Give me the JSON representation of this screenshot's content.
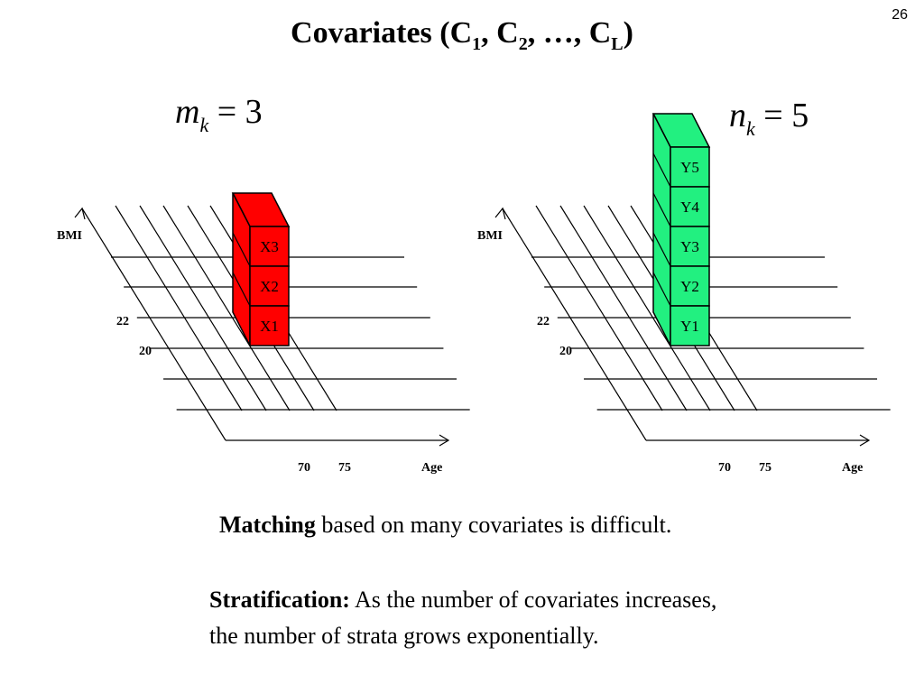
{
  "slide_number": "26",
  "title": {
    "text": "Covariates (C",
    "sub1": "1",
    "mid1": ", C",
    "sub2": "2",
    "mid2": ", …, C",
    "subL": "L",
    "end": ")"
  },
  "formula_left": {
    "var": "m",
    "sub": "k",
    "rest": " = 3"
  },
  "formula_right": {
    "var": "n",
    "sub": "k",
    "rest": " = 5"
  },
  "left_diagram": {
    "y_axis_label": "BMI",
    "x_axis_label": "Age",
    "y_ticks": [
      "22",
      "20"
    ],
    "x_ticks": [
      "70",
      "75"
    ],
    "cube_color": "#ff0000",
    "cubes": [
      "X3",
      "X2",
      "X1"
    ]
  },
  "right_diagram": {
    "y_axis_label": "BMI",
    "x_axis_label": "Age",
    "y_ticks": [
      "22",
      "20"
    ],
    "x_ticks": [
      "70",
      "75"
    ],
    "cube_color": "#22f080",
    "cubes": [
      "Y5",
      "Y4",
      "Y3",
      "Y2",
      "Y1"
    ]
  },
  "text": {
    "matching_bold": "Matching",
    "matching_rest": " based on many covariates is difficult.",
    "strat_bold": "Stratification:",
    "strat_line1": " As the number of covariates increases,",
    "strat_line2": "the number of strata grows exponentially."
  }
}
